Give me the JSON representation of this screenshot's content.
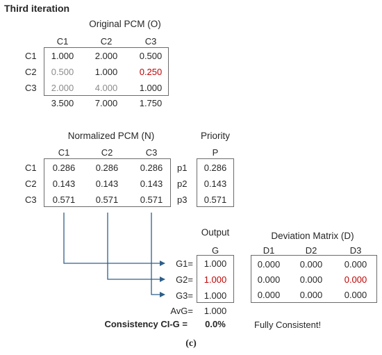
{
  "title": "Third iteration",
  "colors": {
    "text": "#262626",
    "muted": "#8c8c8c",
    "highlight": "#c00000",
    "arrow": "#2e5f8a"
  },
  "original": {
    "title": "Original PCM  (O)",
    "cols": [
      "C1",
      "C2",
      "C3"
    ],
    "rows": [
      "C1",
      "C2",
      "C3"
    ],
    "cells": [
      [
        "1.000",
        "2.000",
        "0.500"
      ],
      [
        "0.500",
        "1.000",
        "0.250"
      ],
      [
        "2.000",
        "4.000",
        "1.000"
      ]
    ],
    "sums": [
      "3.500",
      "7.000",
      "1.750"
    ]
  },
  "normalized": {
    "title": "Normalized PCM (N)",
    "cols": [
      "C1",
      "C2",
      "C3"
    ],
    "rows": [
      "C1",
      "C2",
      "C3"
    ],
    "cells": [
      [
        "0.286",
        "0.286",
        "0.286"
      ],
      [
        "0.143",
        "0.143",
        "0.143"
      ],
      [
        "0.571",
        "0.571",
        "0.571"
      ]
    ]
  },
  "priority": {
    "title": "Priority",
    "col": "P",
    "labels": [
      "p1",
      "p2",
      "p3"
    ],
    "values": [
      "0.286",
      "0.143",
      "0.571"
    ]
  },
  "output": {
    "title": "Output",
    "col": "G",
    "labels": [
      "G1=",
      "G2=",
      "G3="
    ],
    "values": [
      "1.000",
      "1.000",
      "1.000"
    ],
    "avg_label": "AvG=",
    "avg_value": "1.000"
  },
  "deviation": {
    "title": "Deviation Matrix (D)",
    "cols": [
      "D1",
      "D2",
      "D3"
    ],
    "cells": [
      [
        "0.000",
        "0.000",
        "0.000"
      ],
      [
        "0.000",
        "0.000",
        "0.000"
      ],
      [
        "0.000",
        "0.000",
        "0.000"
      ]
    ]
  },
  "consistency": {
    "label": "Consistency CI-G =",
    "value": "0.0%",
    "message": "Fully Consistent!"
  },
  "caption": "(c)"
}
